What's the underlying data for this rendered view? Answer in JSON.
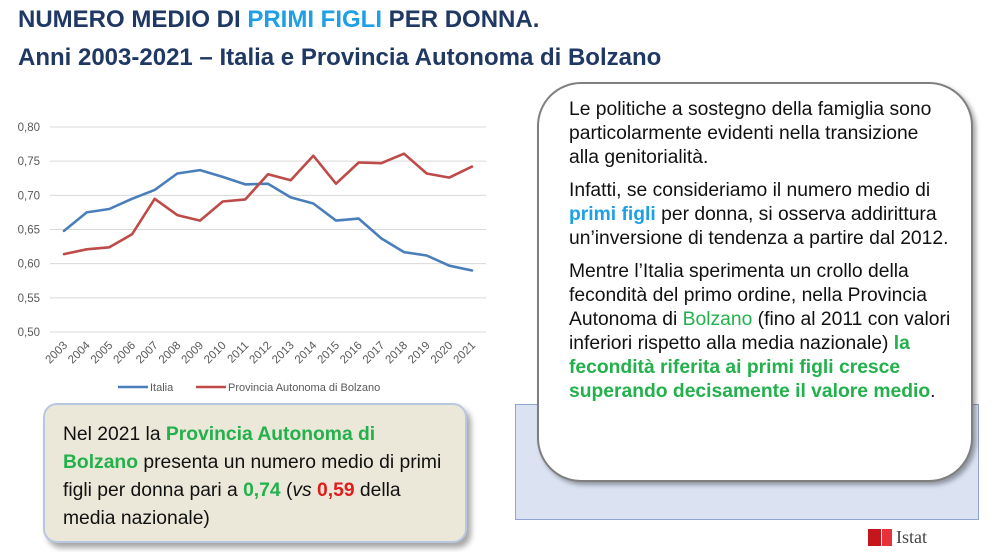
{
  "title": {
    "line1_pre": "NUMERO MEDIO DI ",
    "line1_highlight": "PRIMI FIGLI",
    "line1_post": " PER DONNA.",
    "line2": "Anni 2003-2021 – Italia e Provincia Autonoma di Bolzano"
  },
  "chart_data": {
    "type": "line",
    "x": [
      "2003",
      "2004",
      "2005",
      "2006",
      "2007",
      "2008",
      "2009",
      "2010",
      "2011",
      "2012",
      "2013",
      "2014",
      "2015",
      "2016",
      "2017",
      "2018",
      "2019",
      "2020",
      "2021"
    ],
    "series": [
      {
        "name": "Italia",
        "color": "#4a7ebb",
        "values": [
          0.648,
          0.675,
          0.68,
          0.695,
          0.708,
          0.732,
          0.737,
          0.727,
          0.716,
          0.717,
          0.697,
          0.688,
          0.663,
          0.666,
          0.637,
          0.617,
          0.612,
          0.597,
          0.59
        ]
      },
      {
        "name": "Provincia Autonoma di Bolzano",
        "color": "#be4b48",
        "values": [
          0.614,
          0.621,
          0.624,
          0.643,
          0.695,
          0.671,
          0.663,
          0.691,
          0.694,
          0.731,
          0.722,
          0.758,
          0.717,
          0.748,
          0.747,
          0.761,
          0.732,
          0.726,
          0.742
        ]
      }
    ],
    "yticks": [
      "0,50",
      "0,55",
      "0,60",
      "0,65",
      "0,70",
      "0,75",
      "0,80"
    ],
    "ylim": [
      0.5,
      0.8
    ],
    "grid": true,
    "legend": "bottom"
  },
  "callout_right": {
    "p1": "Le politiche a sostegno della famiglia sono particolarmente evidenti nella transizione alla genitorialità.",
    "p2_pre": "Infatti, se consideriamo il numero medio di ",
    "p2_highlight": "primi figli",
    "p2_post": " per donna, si osserva addirittura un’inversione di tendenza a partire dal 2012.",
    "p3_pre": "Mentre l’Italia sperimenta un crollo della fecondità del primo ordine, nella Provincia Autonoma di ",
    "p3_place": "Bolzano",
    "p3_mid": " (fino al 2011 con valori inferiori rispetto alla media nazionale) ",
    "p3_highlight": "la fecondità riferita ai primi figli cresce superando decisamente il valore medio",
    "p3_post": "."
  },
  "callout_left": {
    "pre": "Nel 2021 la ",
    "place": "Provincia Autonoma di Bolzano",
    "mid": " presenta un numero medio di primi figli per donna pari a ",
    "value_bolzano": "0,74",
    "vs_open": " (",
    "vs": "vs",
    "space": " ",
    "value_italia": "0,59",
    "post": " della media nazionale)"
  },
  "logo": {
    "text": "Istat"
  }
}
